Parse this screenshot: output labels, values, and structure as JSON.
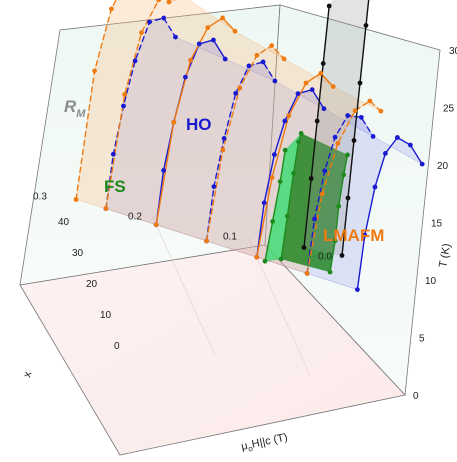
{
  "chart_data": {
    "type": "scatter",
    "subtype": "3d-phase-diagram",
    "axes": {
      "x": {
        "label": "x",
        "ticks": [
          "0.0",
          "0.1",
          "0.2",
          "0.3"
        ],
        "range": [
          0.0,
          0.3
        ]
      },
      "field": {
        "label_parts": [
          "μ",
          "o",
          "H||c (T)"
        ],
        "ticks": [
          "40",
          "30",
          "20",
          "10",
          "0"
        ],
        "range": [
          0,
          45
        ]
      },
      "T": {
        "label": "T (K)",
        "ticks": [
          "0",
          "5",
          "10",
          "15",
          "20",
          "25",
          "30"
        ],
        "range": [
          0,
          30
        ]
      }
    },
    "regions": [
      {
        "name": "R",
        "sub": "M",
        "color": "#8c8c8c",
        "fill": "#9a9a9a",
        "marker": "#111111"
      },
      {
        "name": "FS",
        "color": "#1e8a1e",
        "fill": "#0b7a0b",
        "fill2": "#2ddc6a"
      },
      {
        "name": "HO",
        "color": "#1a1ad0",
        "fill": "#9aa0f0"
      },
      {
        "name": "LMAFM",
        "color": "#f07a10",
        "fill": "#f7b67a"
      }
    ],
    "series": [
      {
        "region": "HO",
        "x": 0.0,
        "points": [
          [
            34,
            0
          ],
          [
            33,
            5
          ],
          [
            30,
            10
          ],
          [
            26,
            14
          ],
          [
            20,
            17
          ],
          [
            12,
            18.5
          ],
          [
            4,
            19
          ]
        ]
      },
      {
        "region": "HO",
        "x": 0.05,
        "points": [
          [
            36,
            0
          ],
          [
            35,
            5
          ],
          [
            32,
            10
          ],
          [
            28,
            14
          ],
          [
            22,
            17.5
          ],
          [
            14,
            19.5
          ],
          [
            6,
            20
          ]
        ]
      },
      {
        "region": "HO",
        "x": 0.1,
        "points": [
          [
            38,
            0
          ],
          [
            37,
            5
          ],
          [
            34,
            10
          ],
          [
            30,
            14
          ],
          [
            24,
            18
          ],
          [
            16,
            20.5
          ],
          [
            8,
            21
          ]
        ]
      },
      {
        "region": "HO",
        "x": 0.15,
        "points": [
          [
            40,
            0
          ],
          [
            39,
            5
          ],
          [
            36,
            10
          ],
          [
            32,
            15
          ],
          [
            26,
            19
          ],
          [
            18,
            21.5
          ],
          [
            10,
            22
          ]
        ]
      },
      {
        "region": "HO",
        "x": 0.2,
        "points": [
          [
            42,
            0
          ],
          [
            41,
            5
          ],
          [
            38,
            10
          ],
          [
            34,
            15
          ],
          [
            28,
            19.5
          ],
          [
            20,
            22
          ],
          [
            12,
            22.5
          ]
        ]
      },
      {
        "region": "HO",
        "x": 0.25,
        "points": [
          [
            44,
            0
          ],
          [
            43,
            5
          ],
          [
            40,
            10
          ],
          [
            36,
            15
          ],
          [
            30,
            20
          ],
          [
            22,
            22.5
          ],
          [
            14,
            23
          ]
        ]
      },
      {
        "region": "LMAFM",
        "x": 0.05,
        "points": [
          [
            36,
            0
          ],
          [
            32,
            8
          ],
          [
            26,
            14
          ],
          [
            18,
            19
          ],
          [
            10,
            22
          ],
          [
            3,
            23
          ]
        ]
      },
      {
        "region": "LMAFM",
        "x": 0.1,
        "points": [
          [
            38,
            0
          ],
          [
            34,
            8
          ],
          [
            28,
            15
          ],
          [
            20,
            20
          ],
          [
            12,
            23
          ],
          [
            4,
            24
          ]
        ]
      },
      {
        "region": "LMAFM",
        "x": 0.15,
        "points": [
          [
            40,
            0
          ],
          [
            36,
            9
          ],
          [
            30,
            16
          ],
          [
            22,
            21
          ],
          [
            14,
            24
          ],
          [
            6,
            25
          ]
        ]
      },
      {
        "region": "LMAFM",
        "x": 0.2,
        "points": [
          [
            42,
            0
          ],
          [
            38,
            10
          ],
          [
            32,
            17
          ],
          [
            24,
            22
          ],
          [
            16,
            25
          ],
          [
            8,
            26
          ]
        ]
      },
      {
        "region": "LMAFM",
        "x": 0.25,
        "points": [
          [
            44,
            0
          ],
          [
            40,
            11
          ],
          [
            34,
            18
          ],
          [
            26,
            23
          ],
          [
            18,
            26.5
          ],
          [
            10,
            27.5
          ]
        ]
      },
      {
        "region": "LMAFM",
        "x": 0.28,
        "points": [
          [
            45,
            0
          ],
          [
            42,
            12
          ],
          [
            36,
            19
          ],
          [
            28,
            24
          ],
          [
            20,
            27.5
          ],
          [
            12,
            28.5
          ],
          [
            3,
            28.5
          ]
        ]
      },
      {
        "region": "FS",
        "x": 0.03,
        "points": [
          [
            34,
            1
          ],
          [
            33,
            4
          ],
          [
            33,
            7
          ],
          [
            32,
            10
          ],
          [
            31,
            12
          ]
        ]
      },
      {
        "region": "FS",
        "x": 0.08,
        "points": [
          [
            35,
            1
          ],
          [
            34,
            5
          ],
          [
            33,
            9
          ],
          [
            32,
            12
          ],
          [
            31,
            13
          ]
        ]
      },
      {
        "region": "FS",
        "x": 0.1,
        "points": [
          [
            33,
            1
          ],
          [
            31,
            5
          ],
          [
            29,
            9
          ],
          [
            28,
            12
          ]
        ]
      },
      {
        "region": "RM",
        "x": 0.0,
        "points": [
          [
            45,
            0
          ],
          [
            45,
            5
          ],
          [
            45,
            10
          ],
          [
            45,
            15
          ],
          [
            45,
            20
          ],
          [
            45,
            24
          ],
          [
            45,
            28
          ]
        ]
      },
      {
        "region": "RM",
        "x": 0.04,
        "points": [
          [
            45,
            0
          ],
          [
            45,
            6
          ],
          [
            45,
            11
          ],
          [
            45,
            16
          ],
          [
            45,
            21
          ]
        ]
      }
    ]
  }
}
